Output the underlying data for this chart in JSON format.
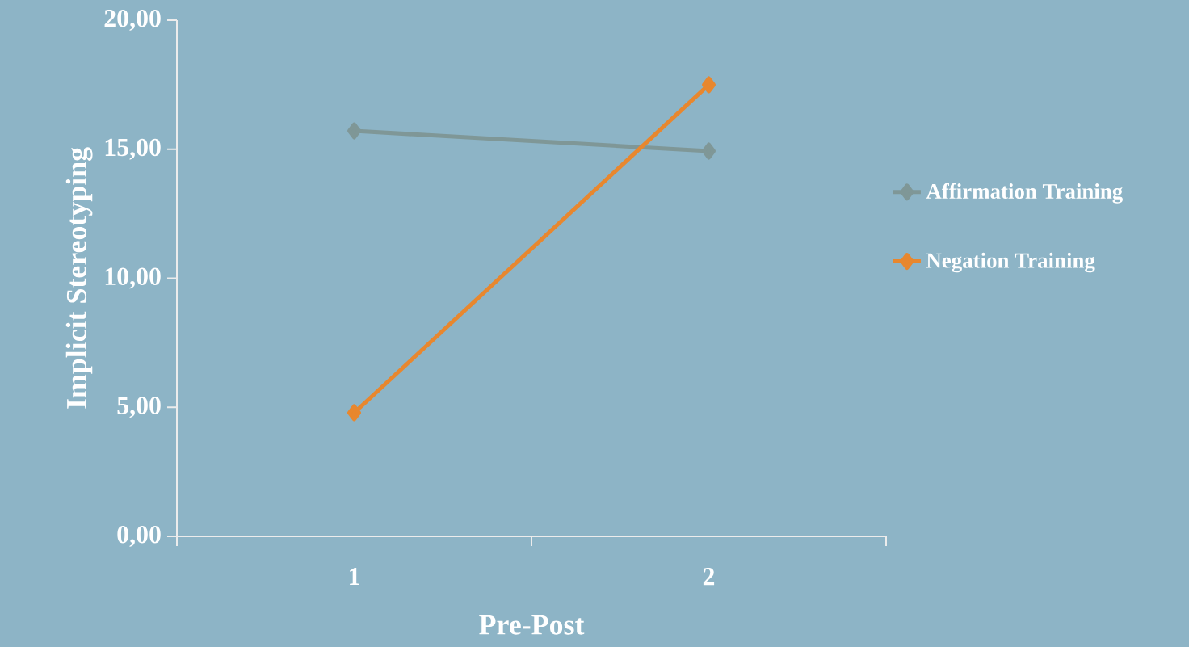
{
  "chart_data": {
    "type": "line",
    "xlabel": "Pre-Post",
    "ylabel": "Implicit Stereotyping",
    "categories": [
      "1",
      "2"
    ],
    "series": [
      {
        "name": "Affirmation Training",
        "color": "#7f9797",
        "values": [
          15.71,
          14.93
        ]
      },
      {
        "name": "Negation Training",
        "color": "#e8872e",
        "values": [
          4.79,
          17.5
        ]
      }
    ],
    "ylim": [
      0,
      20
    ],
    "yticks": [
      {
        "value": 0,
        "label": "0,00"
      },
      {
        "value": 5,
        "label": "5,00"
      },
      {
        "value": 10,
        "label": "10,00"
      },
      {
        "value": 15,
        "label": "15,00"
      },
      {
        "value": 20,
        "label": "20,00"
      }
    ],
    "legend": "right",
    "marker": "diamond",
    "line_style": "solid",
    "grid": false
  }
}
